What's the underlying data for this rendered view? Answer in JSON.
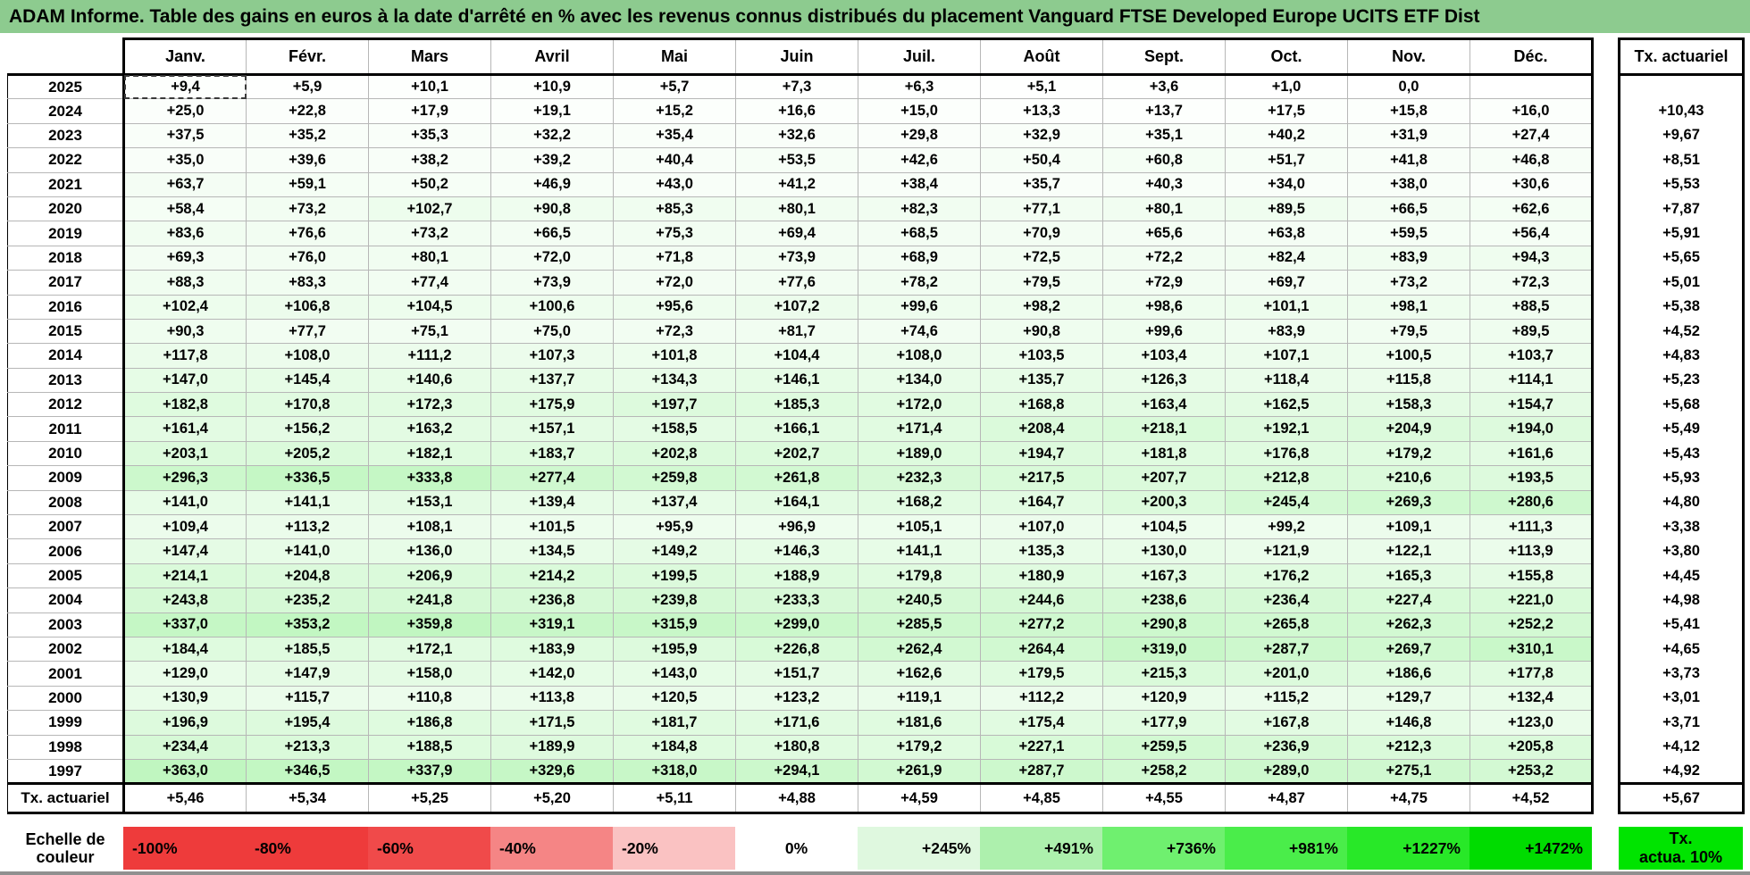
{
  "title": "ADAM Informe. Table des gains en euros à la date d'arrêté en % avec les revenus connus distribués du placement Vanguard FTSE Developed Europe UCITS ETF Dist",
  "table": {
    "months": [
      "Janv.",
      "Févr.",
      "Mars",
      "Avril",
      "Mai",
      "Juin",
      "Juil.",
      "Août",
      "Sept.",
      "Oct.",
      "Nov.",
      "Déc."
    ],
    "tx_header": "Tx. actuariel",
    "rows": [
      {
        "year": "2025",
        "values": [
          "+9,4",
          "+5,9",
          "+10,1",
          "+10,9",
          "+5,7",
          "+7,3",
          "+6,3",
          "+5,1",
          "+3,6",
          "+1,0",
          "0,0",
          ""
        ],
        "tx": ""
      },
      {
        "year": "2024",
        "values": [
          "+25,0",
          "+22,8",
          "+17,9",
          "+19,1",
          "+15,2",
          "+16,6",
          "+15,0",
          "+13,3",
          "+13,7",
          "+17,5",
          "+15,8",
          "+16,0"
        ],
        "tx": "+10,43"
      },
      {
        "year": "2023",
        "values": [
          "+37,5",
          "+35,2",
          "+35,3",
          "+32,2",
          "+35,4",
          "+32,6",
          "+29,8",
          "+32,9",
          "+35,1",
          "+40,2",
          "+31,9",
          "+27,4"
        ],
        "tx": "+9,67"
      },
      {
        "year": "2022",
        "values": [
          "+35,0",
          "+39,6",
          "+38,2",
          "+39,2",
          "+40,4",
          "+53,5",
          "+42,6",
          "+50,4",
          "+60,8",
          "+51,7",
          "+41,8",
          "+46,8"
        ],
        "tx": "+8,51"
      },
      {
        "year": "2021",
        "values": [
          "+63,7",
          "+59,1",
          "+50,2",
          "+46,9",
          "+43,0",
          "+41,2",
          "+38,4",
          "+35,7",
          "+40,3",
          "+34,0",
          "+38,0",
          "+30,6"
        ],
        "tx": "+5,53"
      },
      {
        "year": "2020",
        "values": [
          "+58,4",
          "+73,2",
          "+102,7",
          "+90,8",
          "+85,3",
          "+80,1",
          "+82,3",
          "+77,1",
          "+80,1",
          "+89,5",
          "+66,5",
          "+62,6"
        ],
        "tx": "+7,87"
      },
      {
        "year": "2019",
        "values": [
          "+83,6",
          "+76,6",
          "+73,2",
          "+66,5",
          "+75,3",
          "+69,4",
          "+68,5",
          "+70,9",
          "+65,6",
          "+63,8",
          "+59,5",
          "+56,4"
        ],
        "tx": "+5,91"
      },
      {
        "year": "2018",
        "values": [
          "+69,3",
          "+76,0",
          "+80,1",
          "+72,0",
          "+71,8",
          "+73,9",
          "+68,9",
          "+72,5",
          "+72,2",
          "+82,4",
          "+83,9",
          "+94,3"
        ],
        "tx": "+5,65"
      },
      {
        "year": "2017",
        "values": [
          "+88,3",
          "+83,3",
          "+77,4",
          "+73,9",
          "+72,0",
          "+77,6",
          "+78,2",
          "+79,5",
          "+72,9",
          "+69,7",
          "+73,2",
          "+72,3"
        ],
        "tx": "+5,01"
      },
      {
        "year": "2016",
        "values": [
          "+102,4",
          "+106,8",
          "+104,5",
          "+100,6",
          "+95,6",
          "+107,2",
          "+99,6",
          "+98,2",
          "+98,6",
          "+101,1",
          "+98,1",
          "+88,5"
        ],
        "tx": "+5,38"
      },
      {
        "year": "2015",
        "values": [
          "+90,3",
          "+77,7",
          "+75,1",
          "+75,0",
          "+72,3",
          "+81,7",
          "+74,6",
          "+90,8",
          "+99,6",
          "+83,9",
          "+79,5",
          "+89,5"
        ],
        "tx": "+4,52"
      },
      {
        "year": "2014",
        "values": [
          "+117,8",
          "+108,0",
          "+111,2",
          "+107,3",
          "+101,8",
          "+104,4",
          "+108,0",
          "+103,5",
          "+103,4",
          "+107,1",
          "+100,5",
          "+103,7"
        ],
        "tx": "+4,83"
      },
      {
        "year": "2013",
        "values": [
          "+147,0",
          "+145,4",
          "+140,6",
          "+137,7",
          "+134,3",
          "+146,1",
          "+134,0",
          "+135,7",
          "+126,3",
          "+118,4",
          "+115,8",
          "+114,1"
        ],
        "tx": "+5,23"
      },
      {
        "year": "2012",
        "values": [
          "+182,8",
          "+170,8",
          "+172,3",
          "+175,9",
          "+197,7",
          "+185,3",
          "+172,0",
          "+168,8",
          "+163,4",
          "+162,5",
          "+158,3",
          "+154,7"
        ],
        "tx": "+5,68"
      },
      {
        "year": "2011",
        "values": [
          "+161,4",
          "+156,2",
          "+163,2",
          "+157,1",
          "+158,5",
          "+166,1",
          "+171,4",
          "+208,4",
          "+218,1",
          "+192,1",
          "+204,9",
          "+194,0"
        ],
        "tx": "+5,49"
      },
      {
        "year": "2010",
        "values": [
          "+203,1",
          "+205,2",
          "+182,1",
          "+183,7",
          "+202,8",
          "+202,7",
          "+189,0",
          "+194,7",
          "+181,8",
          "+176,8",
          "+179,2",
          "+161,6"
        ],
        "tx": "+5,43"
      },
      {
        "year": "2009",
        "values": [
          "+296,3",
          "+336,5",
          "+333,8",
          "+277,4",
          "+259,8",
          "+261,8",
          "+232,3",
          "+217,5",
          "+207,7",
          "+212,8",
          "+210,6",
          "+193,5"
        ],
        "tx": "+5,93"
      },
      {
        "year": "2008",
        "values": [
          "+141,0",
          "+141,1",
          "+153,1",
          "+139,4",
          "+137,4",
          "+164,1",
          "+168,2",
          "+164,7",
          "+200,3",
          "+245,4",
          "+269,3",
          "+280,6"
        ],
        "tx": "+4,80"
      },
      {
        "year": "2007",
        "values": [
          "+109,4",
          "+113,2",
          "+108,1",
          "+101,5",
          "+95,9",
          "+96,9",
          "+105,1",
          "+107,0",
          "+104,5",
          "+99,2",
          "+109,1",
          "+111,3"
        ],
        "tx": "+3,38"
      },
      {
        "year": "2006",
        "values": [
          "+147,4",
          "+141,0",
          "+136,0",
          "+134,5",
          "+149,2",
          "+146,3",
          "+141,1",
          "+135,3",
          "+130,0",
          "+121,9",
          "+122,1",
          "+113,9"
        ],
        "tx": "+3,80"
      },
      {
        "year": "2005",
        "values": [
          "+214,1",
          "+204,8",
          "+206,9",
          "+214,2",
          "+199,5",
          "+188,9",
          "+179,8",
          "+180,9",
          "+167,3",
          "+176,2",
          "+165,3",
          "+155,8"
        ],
        "tx": "+4,45"
      },
      {
        "year": "2004",
        "values": [
          "+243,8",
          "+235,2",
          "+241,8",
          "+236,8",
          "+239,8",
          "+233,3",
          "+240,5",
          "+244,6",
          "+238,6",
          "+236,4",
          "+227,4",
          "+221,0"
        ],
        "tx": "+4,98"
      },
      {
        "year": "2003",
        "values": [
          "+337,0",
          "+353,2",
          "+359,8",
          "+319,1",
          "+315,9",
          "+299,0",
          "+285,5",
          "+277,2",
          "+290,8",
          "+265,8",
          "+262,3",
          "+252,2"
        ],
        "tx": "+5,41"
      },
      {
        "year": "2002",
        "values": [
          "+184,4",
          "+185,5",
          "+172,1",
          "+183,9",
          "+195,9",
          "+226,8",
          "+262,4",
          "+264,4",
          "+319,0",
          "+287,7",
          "+269,7",
          "+310,1"
        ],
        "tx": "+4,65"
      },
      {
        "year": "2001",
        "values": [
          "+129,0",
          "+147,9",
          "+158,0",
          "+142,0",
          "+143,0",
          "+151,7",
          "+162,6",
          "+179,5",
          "+215,3",
          "+201,0",
          "+186,6",
          "+177,8"
        ],
        "tx": "+3,73"
      },
      {
        "year": "2000",
        "values": [
          "+130,9",
          "+115,7",
          "+110,8",
          "+113,8",
          "+120,5",
          "+123,2",
          "+119,1",
          "+112,2",
          "+120,9",
          "+115,2",
          "+129,7",
          "+132,4"
        ],
        "tx": "+3,01"
      },
      {
        "year": "1999",
        "values": [
          "+196,9",
          "+195,4",
          "+186,8",
          "+171,5",
          "+181,7",
          "+171,6",
          "+181,6",
          "+175,4",
          "+177,9",
          "+167,8",
          "+146,8",
          "+123,0"
        ],
        "tx": "+3,71"
      },
      {
        "year": "1998",
        "values": [
          "+234,4",
          "+213,3",
          "+188,5",
          "+189,9",
          "+184,8",
          "+180,8",
          "+179,2",
          "+227,1",
          "+259,5",
          "+236,9",
          "+212,3",
          "+205,8"
        ],
        "tx": "+4,12"
      },
      {
        "year": "1997",
        "values": [
          "+363,0",
          "+346,5",
          "+337,9",
          "+329,6",
          "+318,0",
          "+294,1",
          "+261,9",
          "+287,7",
          "+258,2",
          "+289,0",
          "+275,1",
          "+253,2"
        ],
        "tx": "+4,92"
      }
    ],
    "footer": {
      "label": "Tx. actuariel",
      "values": [
        "+5,46",
        "+5,34",
        "+5,25",
        "+5,20",
        "+5,11",
        "+4,88",
        "+4,59",
        "+4,85",
        "+4,55",
        "+4,87",
        "+4,75",
        "+4,52"
      ],
      "tx": "+5,67"
    }
  },
  "selected_cell": {
    "row": 0,
    "col": 0
  },
  "color_scale": {
    "max_value": 1472,
    "max_color": "#00DC00",
    "zero_color": "#FFFFFF"
  },
  "colors": {
    "title_bg": "#8DCB8F",
    "grid_line": "#b7b7b7",
    "thick_border": "#000000"
  },
  "legend": {
    "label": "Echelle de couleur",
    "items": [
      {
        "label": "-100%",
        "color": "#EE3B3B",
        "align": "left"
      },
      {
        "label": "-80%",
        "color": "#EE3B3B",
        "align": "left"
      },
      {
        "label": "-60%",
        "color": "#F04A4A",
        "align": "left"
      },
      {
        "label": "-40%",
        "color": "#F58585",
        "align": "left"
      },
      {
        "label": "-20%",
        "color": "#FAC2C2",
        "align": "left"
      },
      {
        "label": "0%",
        "color": "#FFFFFF",
        "align": "center"
      },
      {
        "label": "+245%",
        "color": "#DFF8DF",
        "align": "right"
      },
      {
        "label": "+491%",
        "color": "#ADF0AD",
        "align": "right"
      },
      {
        "label": "+736%",
        "color": "#6FF06F",
        "align": "right"
      },
      {
        "label": "+981%",
        "color": "#4AED4A",
        "align": "right"
      },
      {
        "label": "+1227%",
        "color": "#28E828",
        "align": "right"
      },
      {
        "label": "+1472%",
        "color": "#00DC00",
        "align": "right"
      }
    ],
    "tx_box": {
      "line1": "Tx.",
      "line2": "actua. 10%",
      "color": "#00E400"
    }
  }
}
